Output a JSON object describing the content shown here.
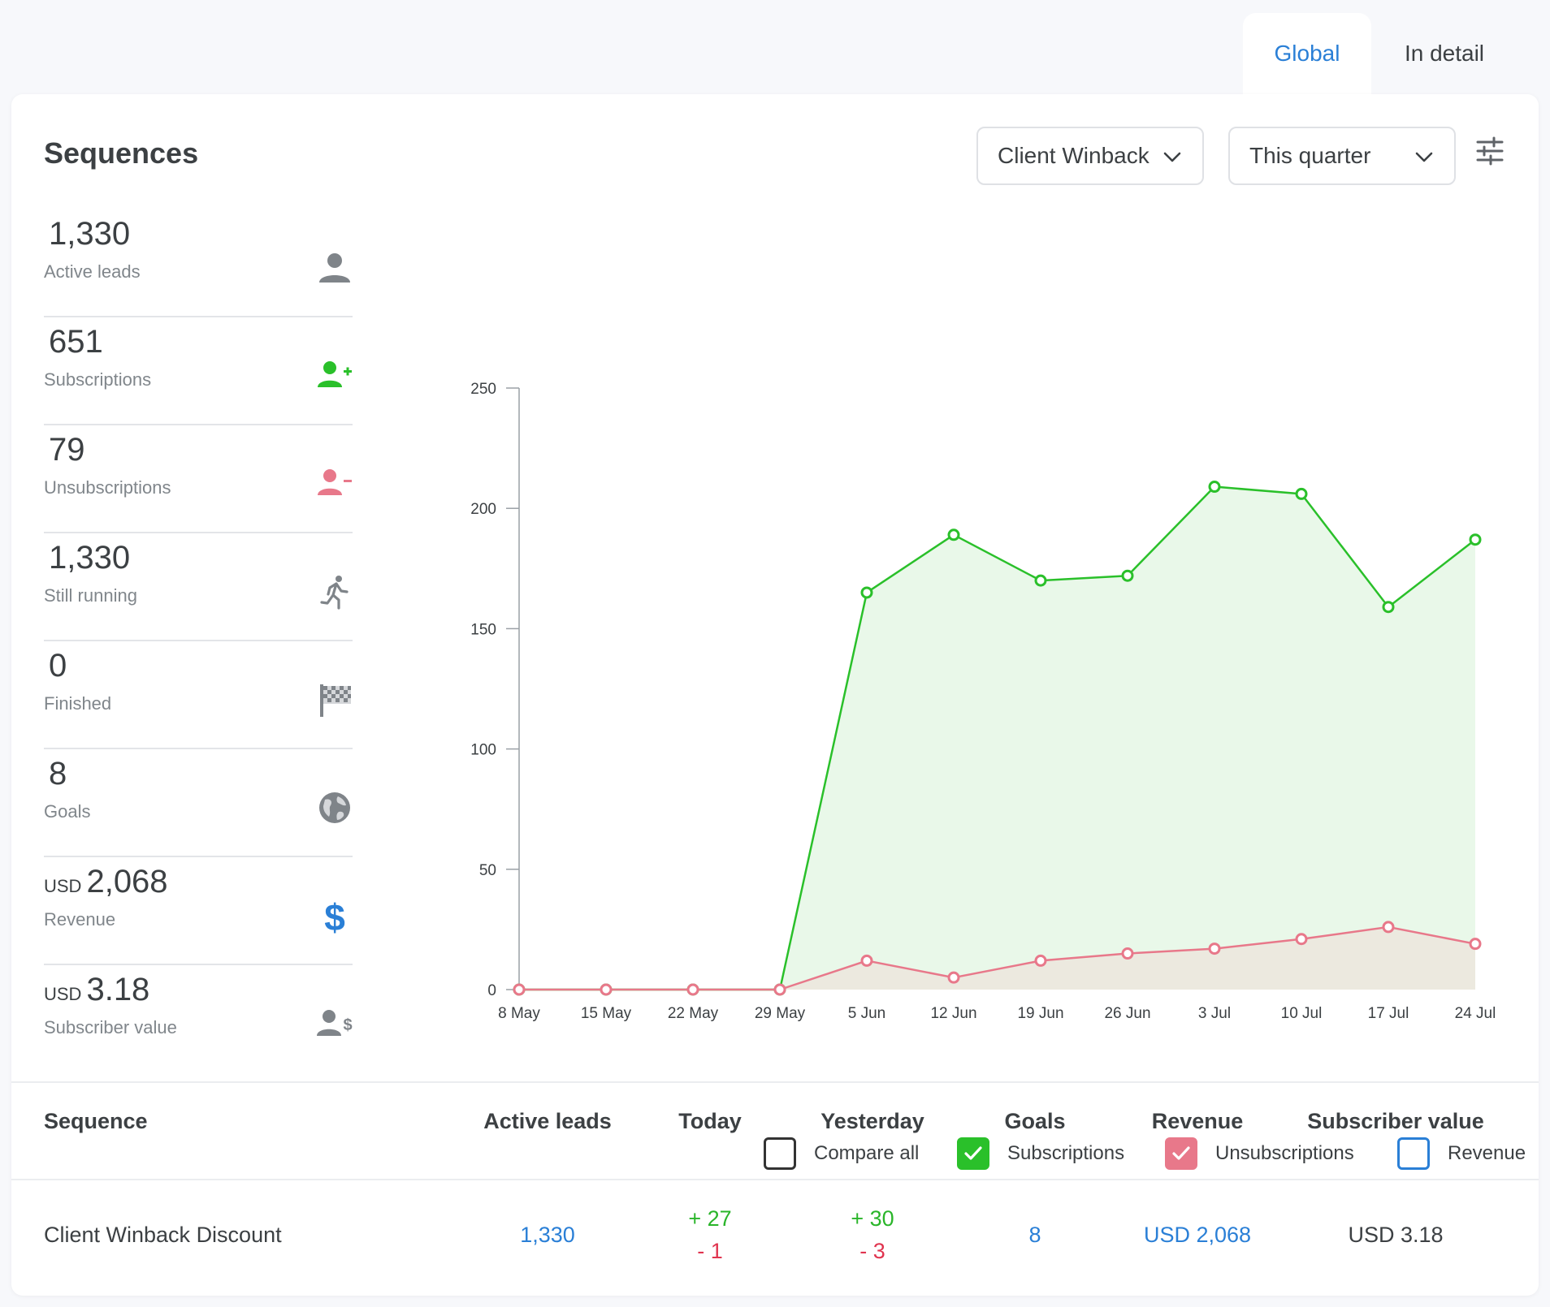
{
  "tabs": [
    {
      "label": "Global",
      "active": true
    },
    {
      "label": "In detail",
      "active": false
    }
  ],
  "section_title": "Sequences",
  "filters": {
    "sequence": "Client Winback",
    "period": "This quarter"
  },
  "stats": [
    {
      "value": "1,330",
      "currency": "",
      "label": "Active leads",
      "icon": "person-icon",
      "color": "#7f8489"
    },
    {
      "value": "651",
      "currency": "",
      "label": "Subscriptions",
      "icon": "person-add-icon",
      "color": "#2ac02a"
    },
    {
      "value": "79",
      "currency": "",
      "label": "Unsubscriptions",
      "icon": "person-remove-icon",
      "color": "#e8788a"
    },
    {
      "value": "1,330",
      "currency": "",
      "label": "Still running",
      "icon": "running-icon",
      "color": "#7f8489"
    },
    {
      "value": "0",
      "currency": "",
      "label": "Finished",
      "icon": "checkered-flag-icon",
      "color": "#7f8489"
    },
    {
      "value": "8",
      "currency": "",
      "label": "Goals",
      "icon": "globe-icon",
      "color": "#7f8489"
    },
    {
      "value": "2,068",
      "currency": "USD",
      "label": "Revenue",
      "icon": "dollar-icon",
      "color": "#2a7fd6"
    },
    {
      "value": "3.18",
      "currency": "USD",
      "label": "Subscriber value",
      "icon": "person-dollar-icon",
      "color": "#7f8489"
    }
  ],
  "chart_data": {
    "type": "area",
    "x": [
      "8 May",
      "15 May",
      "22 May",
      "29 May",
      "5 Jun",
      "12 Jun",
      "19 Jun",
      "26 Jun",
      "3 Jul",
      "10 Jul",
      "17 Jul",
      "24 Jul"
    ],
    "ylim": [
      0,
      250
    ],
    "yticks": [
      0,
      50,
      100,
      150,
      200,
      250
    ],
    "series": [
      {
        "name": "Subscriptions",
        "color": "#2ac02a",
        "fill": "#e9f8e9",
        "values": [
          0,
          0,
          0,
          0,
          165,
          189,
          170,
          172,
          209,
          206,
          159,
          187
        ]
      },
      {
        "name": "Unsubscriptions",
        "color": "#e8788a",
        "fill": "#ece9df",
        "values": [
          0,
          0,
          0,
          0,
          12,
          5,
          12,
          15,
          17,
          21,
          26,
          19
        ]
      }
    ],
    "xlabel": "",
    "ylabel": ""
  },
  "legend": [
    {
      "label": "Compare all",
      "checked": false,
      "color": "#333333",
      "fill": "#ffffff"
    },
    {
      "label": "Subscriptions",
      "checked": true,
      "color": "#2ac02a",
      "fill": "#2ac02a"
    },
    {
      "label": "Unsubscriptions",
      "checked": true,
      "color": "#e8788a",
      "fill": "#e8788a"
    },
    {
      "label": "Revenue",
      "checked": false,
      "color": "#2a7fd6",
      "fill": "#ffffff"
    }
  ],
  "table": {
    "headers": [
      "Sequence",
      "Active leads",
      "Today",
      "Yesterday",
      "Goals",
      "Revenue",
      "Subscriber value"
    ],
    "rows": [
      {
        "sequence": "Client Winback Discount",
        "active_leads": "1,330",
        "today_plus": "+ 27",
        "today_minus": "- 1",
        "yesterday_plus": "+ 30",
        "yesterday_minus": "- 3",
        "goals": "8",
        "revenue": "USD 2,068",
        "subscriber_value": "USD 3.18"
      }
    ]
  }
}
